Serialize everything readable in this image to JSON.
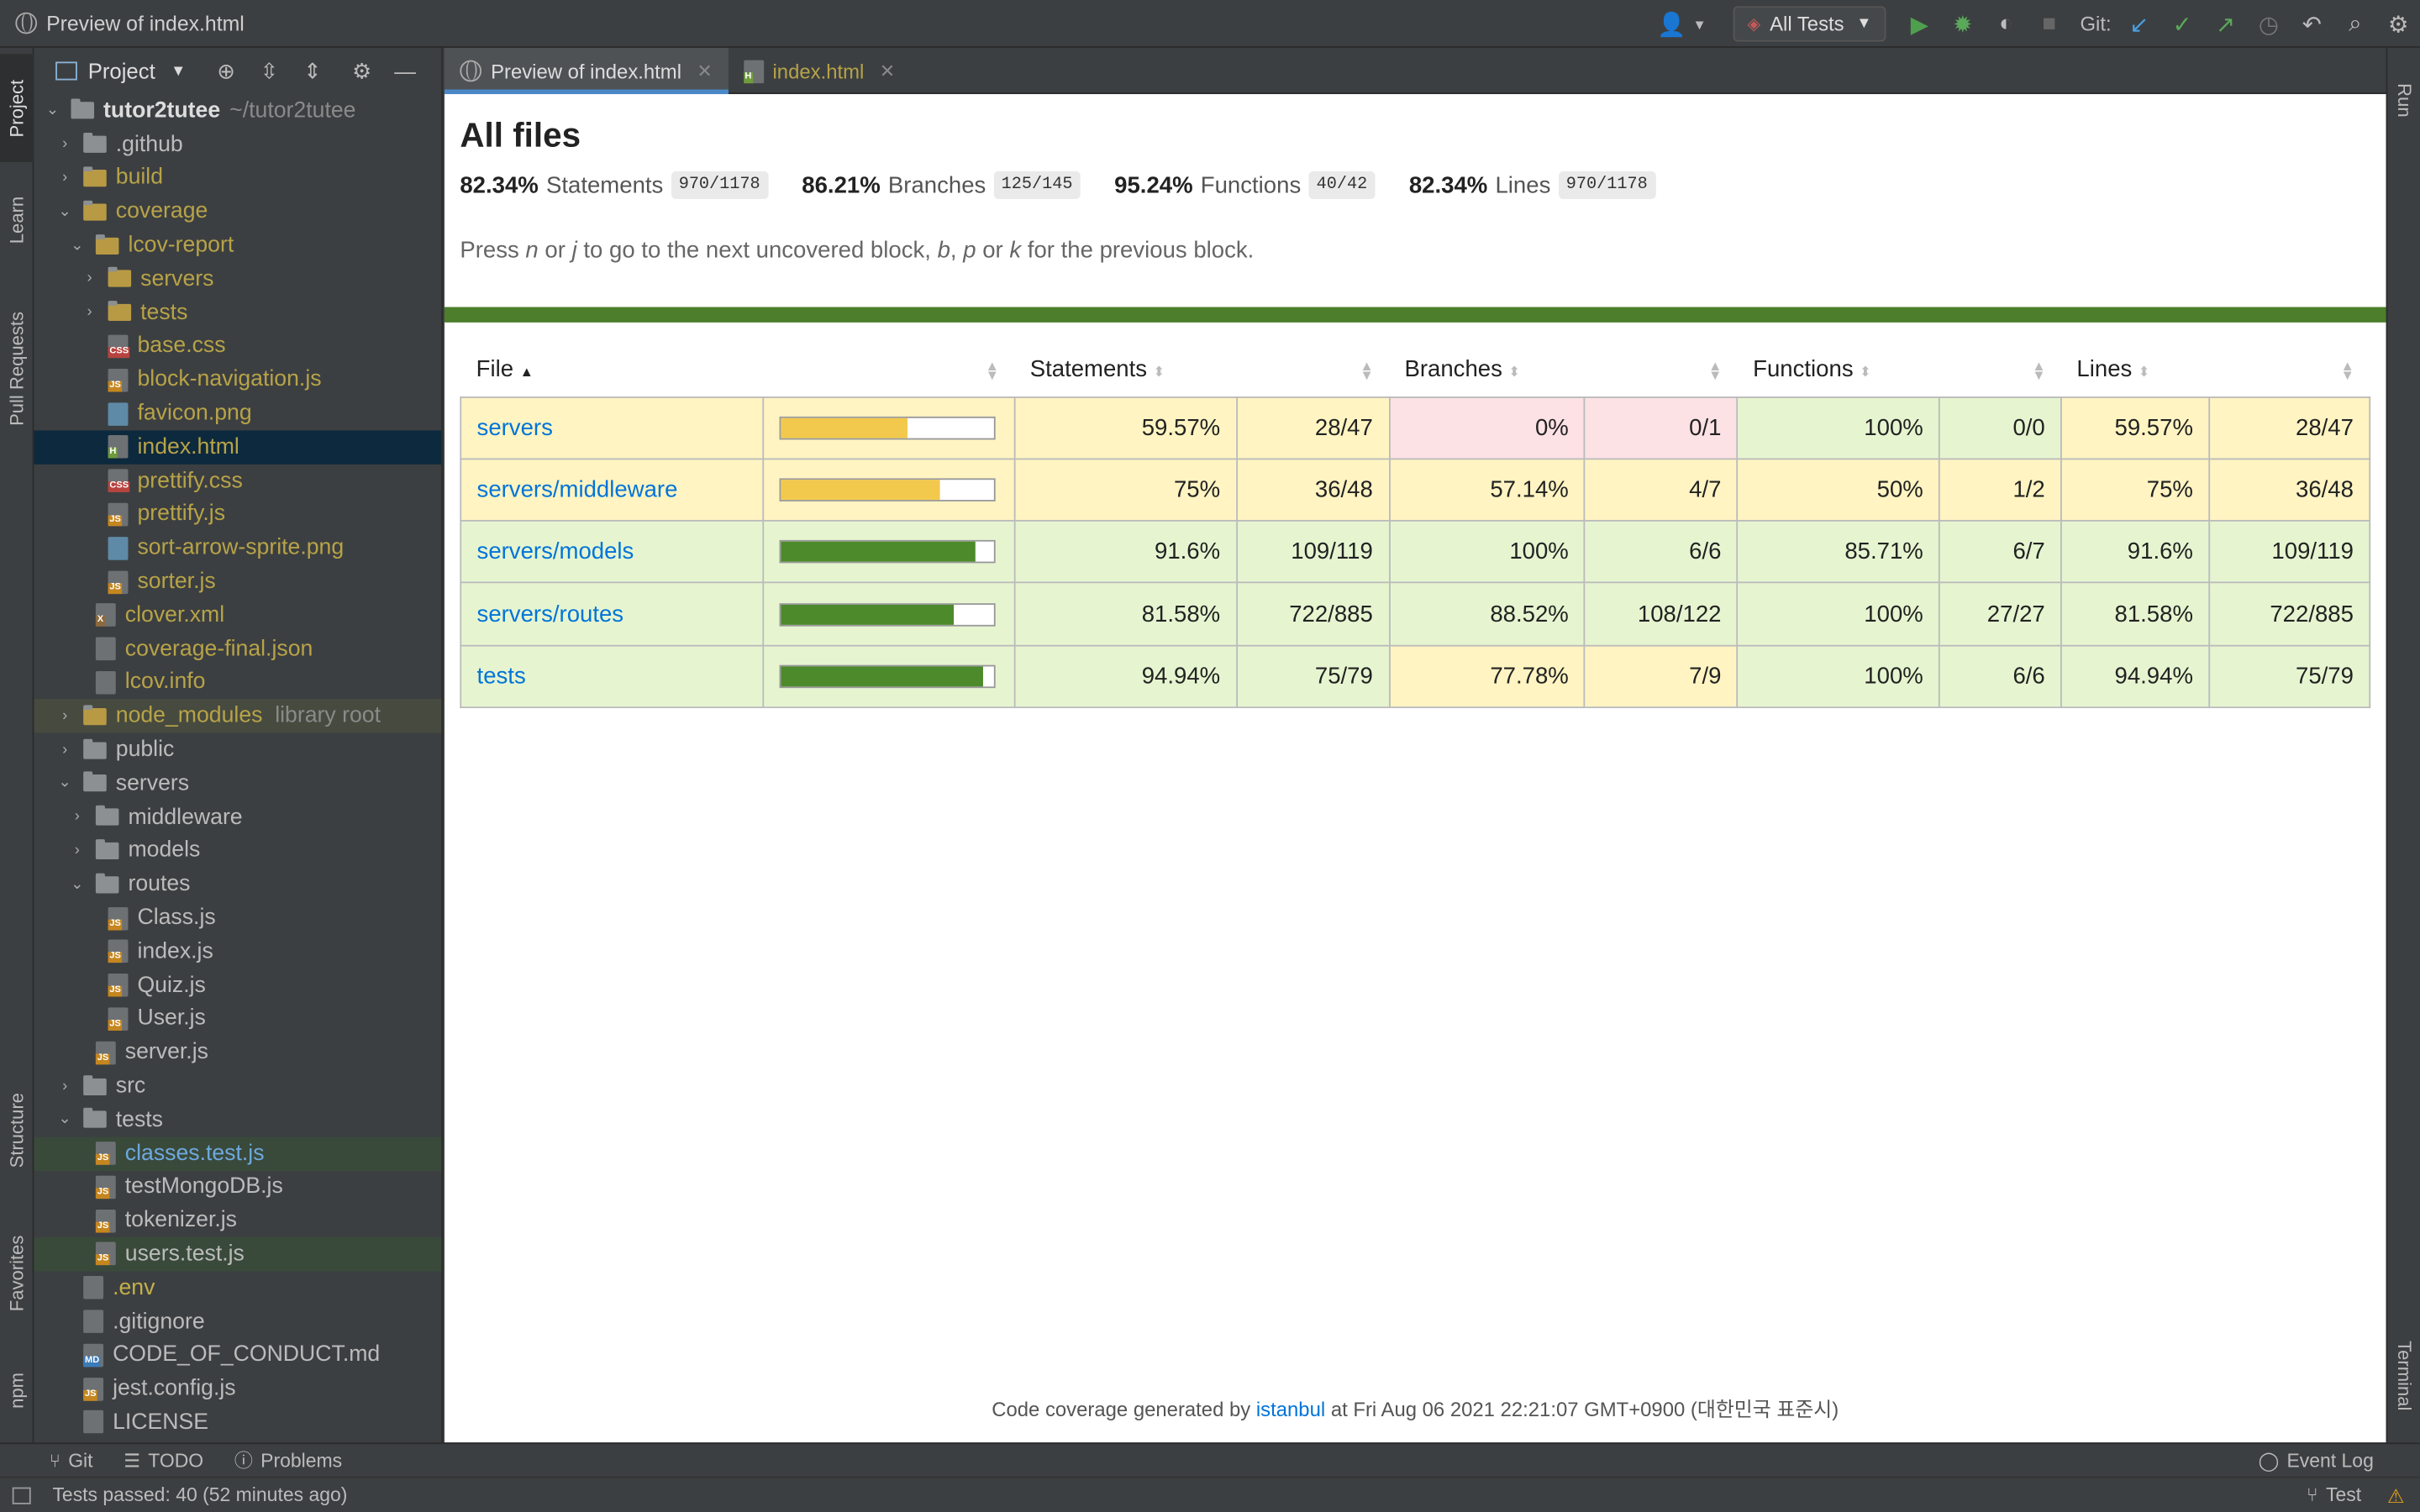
{
  "window": {
    "title": "Preview of index.html"
  },
  "toolbar": {
    "run_config": "All Tests",
    "git_label": "Git:"
  },
  "left_tabs": {
    "project": "Project",
    "learn": "Learn",
    "pull_requests": "Pull Requests",
    "structure": "Structure",
    "favorites": "Favorites",
    "npm": "npm"
  },
  "right_tabs": {
    "run": "Run",
    "terminal": "Terminal"
  },
  "project_panel": {
    "title": "Project",
    "root_name": "tutor2tutee",
    "root_path": "~/tutor2tutee",
    "items": [
      {
        "label": ".github"
      },
      {
        "label": "build"
      },
      {
        "label": "coverage"
      },
      {
        "label": "lcov-report"
      },
      {
        "label": "servers"
      },
      {
        "label": "tests"
      },
      {
        "label": "base.css"
      },
      {
        "label": "block-navigation.js"
      },
      {
        "label": "favicon.png"
      },
      {
        "label": "index.html"
      },
      {
        "label": "prettify.css"
      },
      {
        "label": "prettify.js"
      },
      {
        "label": "sort-arrow-sprite.png"
      },
      {
        "label": "sorter.js"
      },
      {
        "label": "clover.xml"
      },
      {
        "label": "coverage-final.json"
      },
      {
        "label": "lcov.info"
      },
      {
        "label": "node_modules",
        "suffix": "library root"
      },
      {
        "label": "public"
      },
      {
        "label": "servers"
      },
      {
        "label": "middleware"
      },
      {
        "label": "models"
      },
      {
        "label": "routes"
      },
      {
        "label": "Class.js"
      },
      {
        "label": "index.js"
      },
      {
        "label": "Quiz.js"
      },
      {
        "label": "User.js"
      },
      {
        "label": "server.js"
      },
      {
        "label": "src"
      },
      {
        "label": "tests"
      },
      {
        "label": "classes.test.js"
      },
      {
        "label": "testMongoDB.js"
      },
      {
        "label": "tokenizer.js"
      },
      {
        "label": "users.test.js"
      },
      {
        "label": ".env"
      },
      {
        "label": ".gitignore"
      },
      {
        "label": "CODE_OF_CONDUCT.md"
      },
      {
        "label": "jest.config.js"
      },
      {
        "label": "LICENSE"
      }
    ]
  },
  "tabs": [
    {
      "label": "Preview of index.html"
    },
    {
      "label": "index.html"
    }
  ],
  "report": {
    "title": "All files",
    "summary": [
      {
        "pct": "82.34%",
        "label": "Statements",
        "fraction": "970/1178"
      },
      {
        "pct": "86.21%",
        "label": "Branches",
        "fraction": "125/145"
      },
      {
        "pct": "95.24%",
        "label": "Functions",
        "fraction": "40/42"
      },
      {
        "pct": "82.34%",
        "label": "Lines",
        "fraction": "970/1178"
      }
    ],
    "hint_parts": [
      "Press ",
      "n",
      " or ",
      "j",
      " to go to the next uncovered block, ",
      "b",
      ", ",
      "p",
      " or ",
      "k",
      " for the previous block."
    ],
    "headers": [
      "File",
      "Statements",
      "Branches",
      "Functions",
      "Lines"
    ],
    "rows": [
      {
        "file": "servers",
        "bar": 0.5957,
        "stmt_pct": "59.57%",
        "stmt": "28/47",
        "br_pct": "0%",
        "br": "0/1",
        "fn_pct": "100%",
        "fn": "0/0",
        "ln_pct": "59.57%",
        "ln": "28/47"
      },
      {
        "file": "servers/middleware",
        "bar": 0.75,
        "stmt_pct": "75%",
        "stmt": "36/48",
        "br_pct": "57.14%",
        "br": "4/7",
        "fn_pct": "50%",
        "fn": "1/2",
        "ln_pct": "75%",
        "ln": "36/48"
      },
      {
        "file": "servers/models",
        "bar": 0.916,
        "stmt_pct": "91.6%",
        "stmt": "109/119",
        "br_pct": "100%",
        "br": "6/6",
        "fn_pct": "85.71%",
        "fn": "6/7",
        "ln_pct": "91.6%",
        "ln": "109/119"
      },
      {
        "file": "servers/routes",
        "bar": 0.8158,
        "stmt_pct": "81.58%",
        "stmt": "722/885",
        "br_pct": "88.52%",
        "br": "108/122",
        "fn_pct": "100%",
        "fn": "27/27",
        "ln_pct": "81.58%",
        "ln": "722/885"
      },
      {
        "file": "tests",
        "bar": 0.9494,
        "stmt_pct": "94.94%",
        "stmt": "75/79",
        "br_pct": "77.78%",
        "br": "7/9",
        "fn_pct": "100%",
        "fn": "6/6",
        "ln_pct": "94.94%",
        "ln": "75/79"
      }
    ],
    "footer_prefix": "Code coverage generated by ",
    "footer_link": "istanbul",
    "footer_suffix": " at Fri Aug 06 2021 22:21:07 GMT+0900 (대한민국 표준시)"
  },
  "bottom_tools": {
    "git": "Git",
    "todo": "TODO",
    "problems": "Problems",
    "event_log": "Event Log"
  },
  "status": {
    "message": "Tests passed: 40 (52 minutes ago)",
    "right": "Test"
  },
  "colors": {
    "bar_medium": "#f2c94c",
    "bar_high": "#4d8a2b",
    "accent": "#4a88c7"
  }
}
